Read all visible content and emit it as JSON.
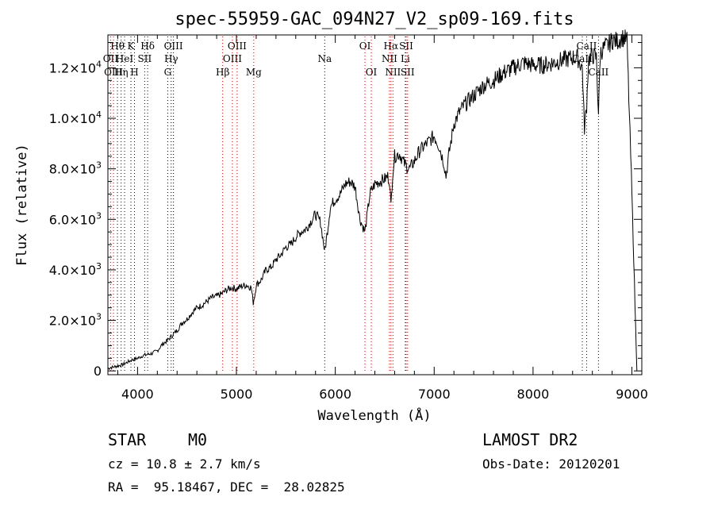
{
  "footer": {
    "object_class": "STAR",
    "subclass": "M0",
    "survey": "LAMOST DR2",
    "redshift": "cz = 10.8 ± 2.7 km/s",
    "obs_date": "Obs-Date: 20120201",
    "coords": "RA =  95.18467, DEC =  28.02825"
  },
  "chart_data": {
    "type": "line",
    "title": "spec-55959-GAC_094N27_V2_sp09-169.fits",
    "xlabel": "Wavelength (Å)",
    "ylabel": "Flux (relative)",
    "xlim": [
      3700,
      9100
    ],
    "ylim": [
      -150,
      13300
    ],
    "x_ticks": [
      4000,
      5000,
      6000,
      7000,
      8000,
      9000
    ],
    "y_ticks": [
      {
        "value": 0,
        "mant": "0",
        "exp": ""
      },
      {
        "value": 2000,
        "mant": "2.0×10",
        "exp": "3"
      },
      {
        "value": 4000,
        "mant": "4.0×10",
        "exp": "3"
      },
      {
        "value": 6000,
        "mant": "6.0×10",
        "exp": "3"
      },
      {
        "value": 8000,
        "mant": "8.0×10",
        "exp": "3"
      },
      {
        "value": 10000,
        "mant": "1.0×10",
        "exp": "4"
      },
      {
        "value": 12000,
        "mant": "1.2×10",
        "exp": "4"
      }
    ],
    "series": [
      {
        "x": [
          3700,
          3750,
          3800,
          3850,
          3900,
          3950,
          4000,
          4050,
          4100,
          4150,
          4200,
          4250,
          4300,
          4350,
          4400,
          4450,
          4500,
          4550,
          4600,
          4650,
          4700,
          4750,
          4800,
          4850,
          4900,
          4950,
          5000,
          5050,
          5100,
          5150,
          5170,
          5190,
          5200,
          5250,
          5300,
          5350,
          5400,
          5450,
          5500,
          5550,
          5600,
          5650,
          5700,
          5750,
          5800,
          5850,
          5880,
          5893,
          5910,
          5950,
          6000,
          6050,
          6100,
          6150,
          6200,
          6250,
          6300,
          6350,
          6400,
          6450,
          6500,
          6530,
          6550,
          6563,
          6580,
          6600,
          6650,
          6700,
          6750,
          6800,
          6850,
          6900,
          6950,
          7000,
          7050,
          7100,
          7120,
          7150,
          7200,
          7250,
          7300,
          7350,
          7400,
          7450,
          7500,
          7600,
          7700,
          7800,
          7900,
          8000,
          8100,
          8200,
          8300,
          8400,
          8450,
          8498,
          8520,
          8542,
          8560,
          8600,
          8640,
          8662,
          8680,
          8720,
          8760,
          8800,
          8850,
          8900,
          8950,
          9000,
          9050
        ],
        "y": [
          100,
          150,
          200,
          250,
          350,
          450,
          500,
          600,
          650,
          700,
          800,
          1050,
          1200,
          1400,
          1600,
          1900,
          2050,
          2300,
          2500,
          2600,
          2750,
          2900,
          2950,
          3050,
          3200,
          3300,
          3250,
          3350,
          3400,
          3300,
          2700,
          3100,
          3400,
          3600,
          4000,
          4100,
          4400,
          4600,
          4900,
          5000,
          5300,
          5500,
          5600,
          5900,
          6200,
          5900,
          5100,
          4700,
          5200,
          6500,
          6800,
          7000,
          7400,
          7500,
          7300,
          6000,
          5500,
          7000,
          7400,
          7500,
          7600,
          7700,
          7500,
          6500,
          7800,
          8500,
          8600,
          8200,
          8000,
          8300,
          8700,
          8900,
          9100,
          9300,
          8900,
          8200,
          7700,
          8600,
          9800,
          10200,
          10500,
          10700,
          10900,
          11100,
          11300,
          11500,
          11800,
          12000,
          12200,
          12100,
          12100,
          12200,
          12300,
          12400,
          12400,
          12000,
          9600,
          10500,
          12300,
          12500,
          12400,
          10200,
          12600,
          12800,
          12900,
          13100,
          13050,
          13200,
          13100,
          7000,
          0
        ],
        "color": "#000000"
      }
    ],
    "line_markers": [
      {
        "wave": 3797,
        "color": "#000000",
        "label": "Hθ",
        "row": 0,
        "dx": 0
      },
      {
        "wave": 3834,
        "color": "#000000",
        "label": "Hη",
        "row": 2,
        "dx": 0
      },
      {
        "wave": 3869,
        "color": "#000000",
        "label": "HeI",
        "row": 1,
        "dx": 0
      },
      {
        "wave": 3933,
        "color": "#000000",
        "label": "K",
        "row": 0,
        "dx": 0
      },
      {
        "wave": 3969,
        "color": "#000000",
        "label": "H",
        "row": 2,
        "dx": 0
      },
      {
        "wave": 4072,
        "color": "#000000",
        "label": "SII",
        "row": 1,
        "dx": 0
      },
      {
        "wave": 4102,
        "color": "#000000",
        "label": "Hδ",
        "row": 0,
        "dx": 0
      },
      {
        "wave": 4305,
        "color": "#000000",
        "label": "G",
        "row": 2,
        "dx": 0
      },
      {
        "wave": 4340,
        "color": "#000000",
        "label": "Hγ",
        "row": 1,
        "dx": 0
      },
      {
        "wave": 4363,
        "color": "#000000",
        "label": "OIII",
        "row": 0,
        "dx": 0
      },
      {
        "wave": 3727,
        "color": "#cc0000",
        "label": "OII",
        "row": 1,
        "dx": 0
      },
      {
        "wave": 3757,
        "color": "#cc0000",
        "label": "OIII",
        "row": 2,
        "dx": 0
      },
      {
        "wave": 4861,
        "color": "#cc0000",
        "label": "Hβ",
        "row": 2,
        "dx": 0
      },
      {
        "wave": 4959,
        "color": "#cc0000",
        "label": "OIII",
        "row": 1,
        "dx": 0
      },
      {
        "wave": 5007,
        "color": "#cc0000",
        "label": "OIII",
        "row": 0,
        "dx": 0
      },
      {
        "wave": 5175,
        "color": "#cc0000",
        "label": "Mg",
        "row": 2,
        "dx": 0
      },
      {
        "wave": 5893,
        "color": "#000000",
        "label": "Na",
        "row": 1,
        "dx": 0
      },
      {
        "wave": 6300,
        "color": "#cc0000",
        "label": "OI",
        "row": 0,
        "dx": 0
      },
      {
        "wave": 6364,
        "color": "#cc0000",
        "label": "OI",
        "row": 2,
        "dx": 0
      },
      {
        "wave": 6548,
        "color": "#cc0000",
        "label": "NII",
        "row": 1,
        "dx": 0
      },
      {
        "wave": 6563,
        "color": "#cc0000",
        "label": "Hα",
        "row": 0,
        "dx": 0
      },
      {
        "wave": 6583,
        "color": "#cc0000",
        "label": "NII",
        "row": 2,
        "dx": 0
      },
      {
        "wave": 6708,
        "color": "#000000",
        "label": "Li",
        "row": 1,
        "dx": 0
      },
      {
        "wave": 6717,
        "color": "#cc0000",
        "label": "SII",
        "row": 0,
        "dx": 0
      },
      {
        "wave": 6731,
        "color": "#cc0000",
        "label": "SII",
        "row": 2,
        "dx": 0
      },
      {
        "wave": 8498,
        "color": "#000000",
        "label": "CaII",
        "row": 1,
        "dx": 0
      },
      {
        "wave": 8542,
        "color": "#000000",
        "label": "CaII",
        "row": 0,
        "dx": 0
      },
      {
        "wave": 8662,
        "color": "#000000",
        "label": "CaII",
        "row": 2,
        "dx": 0
      }
    ]
  }
}
